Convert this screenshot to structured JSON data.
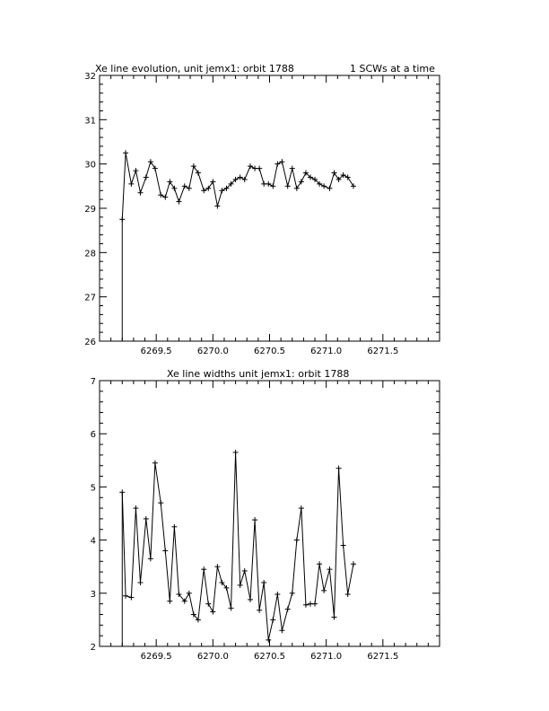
{
  "chart_data": [
    {
      "type": "line",
      "title": "Xe line evolution, unit jemx1: orbit 1788",
      "title_right": "1 SCWs at a time",
      "xlim": [
        6269.0,
        6272.0
      ],
      "ylim": [
        26,
        32
      ],
      "xticks": [
        6269.5,
        6270.0,
        6270.5,
        6271.0,
        6271.5
      ],
      "xtick_labels": [
        "6269.5",
        "6270.0",
        "6270.5",
        "6271.0",
        "6271.5"
      ],
      "yticks": [
        26,
        27,
        28,
        29,
        30,
        31,
        32
      ],
      "ytick_labels": [
        "26",
        "27",
        "28",
        "29",
        "30",
        "31",
        "32"
      ],
      "series": [
        {
          "marker": "plus",
          "x": [
            6269.2,
            6269.23,
            6269.28,
            6269.32,
            6269.36,
            6269.41,
            6269.45,
            6269.49,
            6269.54,
            6269.58,
            6269.62,
            6269.66,
            6269.7,
            6269.75,
            6269.79,
            6269.83,
            6269.87,
            6269.92,
            6269.96,
            6270.0,
            6270.04,
            6270.08,
            6270.12,
            6270.16,
            6270.2,
            6270.24,
            6270.28,
            6270.33,
            6270.37,
            6270.41,
            6270.45,
            6270.49,
            6270.53,
            6270.57,
            6270.61,
            6270.66,
            6270.7,
            6270.74,
            6270.78,
            6270.82,
            6270.86,
            6270.9,
            6270.94,
            6270.98,
            6271.03,
            6271.07,
            6271.11,
            6271.15,
            6271.19,
            6271.24
          ],
          "y": [
            28.75,
            30.25,
            29.55,
            29.85,
            29.35,
            29.7,
            30.05,
            29.9,
            29.3,
            29.25,
            29.6,
            29.45,
            29.15,
            29.5,
            29.45,
            29.95,
            29.8,
            29.4,
            29.45,
            29.6,
            29.05,
            29.4,
            29.45,
            29.55,
            29.65,
            29.7,
            29.65,
            29.95,
            29.9,
            29.9,
            29.55,
            29.55,
            29.5,
            30.0,
            30.05,
            29.5,
            29.9,
            29.45,
            29.6,
            29.8,
            29.7,
            29.65,
            29.55,
            29.5,
            29.45,
            29.8,
            29.65,
            29.75,
            29.7,
            29.5
          ]
        }
      ]
    },
    {
      "type": "line",
      "title": "Xe line widths unit jemx1: orbit 1788",
      "xlim": [
        6269.0,
        6272.0
      ],
      "ylim": [
        2,
        7
      ],
      "xticks": [
        6269.5,
        6270.0,
        6270.5,
        6271.0,
        6271.5
      ],
      "xtick_labels": [
        "6269.5",
        "6270.0",
        "6270.5",
        "6271.0",
        "6271.5"
      ],
      "yticks": [
        2,
        3,
        4,
        5,
        6,
        7
      ],
      "ytick_labels": [
        "2",
        "3",
        "4",
        "5",
        "6",
        "7"
      ],
      "series": [
        {
          "marker": "plus",
          "x": [
            6269.2,
            6269.23,
            6269.28,
            6269.32,
            6269.36,
            6269.41,
            6269.45,
            6269.49,
            6269.54,
            6269.58,
            6269.62,
            6269.66,
            6269.7,
            6269.75,
            6269.79,
            6269.83,
            6269.87,
            6269.92,
            6269.96,
            6270.0,
            6270.04,
            6270.08,
            6270.12,
            6270.16,
            6270.2,
            6270.24,
            6270.28,
            6270.33,
            6270.37,
            6270.41,
            6270.45,
            6270.49,
            6270.53,
            6270.57,
            6270.61,
            6270.66,
            6270.7,
            6270.74,
            6270.78,
            6270.82,
            6270.86,
            6270.9,
            6270.94,
            6270.98,
            6271.03,
            6271.07,
            6271.11,
            6271.15,
            6271.19,
            6271.24
          ],
          "y": [
            4.9,
            2.95,
            2.92,
            4.6,
            3.2,
            4.4,
            3.65,
            5.45,
            4.7,
            3.8,
            2.85,
            4.25,
            2.98,
            2.85,
            3.0,
            2.6,
            2.5,
            3.45,
            2.8,
            2.65,
            3.5,
            3.2,
            3.1,
            2.72,
            5.65,
            3.15,
            3.42,
            2.88,
            4.38,
            2.68,
            3.2,
            2.12,
            2.5,
            2.98,
            2.3,
            2.7,
            3.0,
            4.0,
            4.6,
            2.78,
            2.8,
            2.8,
            3.55,
            3.05,
            3.45,
            2.55,
            5.35,
            3.9,
            2.98,
            3.55
          ]
        }
      ]
    }
  ]
}
